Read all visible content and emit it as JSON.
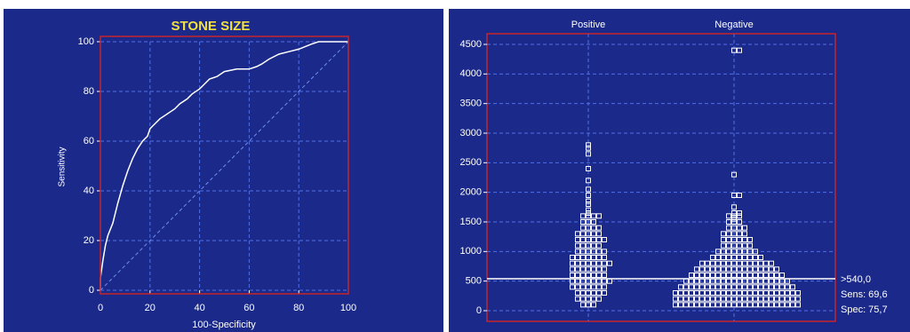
{
  "chart_data": [
    {
      "type": "line",
      "title": "STONE SIZE",
      "x_label": "100-Specificity",
      "y_label": "Sensitivity",
      "x": [
        0,
        0,
        1,
        2,
        3,
        5,
        7,
        9,
        11,
        13,
        15,
        17,
        19,
        20,
        22,
        24,
        27,
        30,
        32,
        35,
        37,
        40,
        42,
        44,
        47,
        50,
        55,
        60,
        63,
        65,
        68,
        72,
        76,
        80,
        85,
        88,
        100
      ],
      "values": [
        0,
        5,
        12,
        18,
        22,
        27,
        35,
        42,
        48,
        53,
        57,
        60,
        62,
        65,
        67,
        69,
        71,
        73,
        75,
        77,
        79,
        81,
        83,
        85,
        86,
        88,
        89,
        89,
        90,
        91,
        93,
        95,
        96,
        97,
        99,
        100,
        100
      ],
      "color": "#ffffff",
      "diagonal": true,
      "grid": true,
      "xlim": [
        0,
        100
      ],
      "xticks": [
        0,
        20,
        40,
        60,
        80,
        100
      ],
      "ylim": [
        0,
        100
      ],
      "yticks": [
        0,
        20,
        40,
        60,
        80,
        100
      ]
    },
    {
      "type": "dotplot",
      "categories": [
        "Positive",
        "Negative"
      ],
      "color": "#ffffff",
      "grid": true,
      "ylim": [
        0,
        4500
      ],
      "yticks": [
        0,
        500,
        1000,
        1500,
        2000,
        2500,
        3000,
        3500,
        4000,
        4500
      ],
      "cutoff": 540,
      "cutoff_label": ">540,0",
      "sens_label": "Sens: 69,6",
      "spec_label": "Spec: 75,7",
      "groups": [
        [
          2800,
          2750,
          2650,
          2400,
          2200,
          2050,
          1950,
          1850,
          1800,
          1700,
          1650,
          1600,
          1600,
          1600,
          1600,
          1500,
          1500,
          1500,
          1400,
          1400,
          1400,
          1400,
          1300,
          1300,
          1300,
          1300,
          1300,
          1200,
          1200,
          1200,
          1200,
          1200,
          1200,
          1100,
          1100,
          1100,
          1100,
          1100,
          1000,
          1000,
          1000,
          1000,
          1000,
          1000,
          900,
          900,
          900,
          900,
          900,
          900,
          900,
          800,
          800,
          800,
          800,
          800,
          800,
          800,
          800,
          700,
          700,
          700,
          700,
          700,
          700,
          700,
          600,
          600,
          600,
          600,
          600,
          600,
          600,
          500,
          500,
          500,
          500,
          500,
          500,
          500,
          500,
          400,
          400,
          400,
          400,
          400,
          400,
          400,
          300,
          300,
          300,
          300,
          300,
          300,
          200,
          200,
          200,
          200,
          200,
          100,
          100,
          100
        ],
        [
          4400,
          4400,
          2300,
          1950,
          1950,
          1750,
          1650,
          1650,
          1600,
          1600,
          1600,
          1550,
          1500,
          1500,
          1500,
          1400,
          1400,
          1400,
          1400,
          1300,
          1300,
          1300,
          1300,
          1300,
          1200,
          1200,
          1200,
          1200,
          1200,
          1200,
          1100,
          1100,
          1100,
          1100,
          1100,
          1100,
          1000,
          1000,
          1000,
          1000,
          1000,
          1000,
          1000,
          1000,
          900,
          900,
          900,
          900,
          900,
          900,
          900,
          900,
          900,
          900,
          800,
          800,
          800,
          800,
          800,
          800,
          800,
          800,
          800,
          800,
          800,
          800,
          800,
          800,
          700,
          700,
          700,
          700,
          700,
          700,
          700,
          700,
          700,
          700,
          700,
          700,
          700,
          700,
          700,
          700,
          600,
          600,
          600,
          600,
          600,
          600,
          600,
          600,
          600,
          600,
          600,
          600,
          600,
          600,
          600,
          600,
          600,
          600,
          500,
          500,
          500,
          500,
          500,
          500,
          500,
          500,
          500,
          500,
          500,
          500,
          500,
          500,
          500,
          500,
          500,
          500,
          500,
          500,
          400,
          400,
          400,
          400,
          400,
          400,
          400,
          400,
          400,
          400,
          400,
          400,
          400,
          400,
          400,
          400,
          400,
          400,
          400,
          400,
          400,
          400,
          300,
          300,
          300,
          300,
          300,
          300,
          300,
          300,
          300,
          300,
          300,
          300,
          300,
          300,
          300,
          300,
          300,
          300,
          300,
          300,
          300,
          300,
          300,
          300,
          200,
          200,
          200,
          200,
          200,
          200,
          200,
          200,
          200,
          200,
          200,
          200,
          200,
          200,
          200,
          200,
          200,
          200,
          200,
          200,
          200,
          200,
          200,
          200,
          100,
          100,
          100,
          100,
          100,
          100,
          100,
          100,
          100,
          100,
          100,
          100,
          100,
          100,
          100,
          100,
          100,
          100,
          100,
          100,
          100,
          100,
          100,
          100
        ]
      ]
    }
  ]
}
